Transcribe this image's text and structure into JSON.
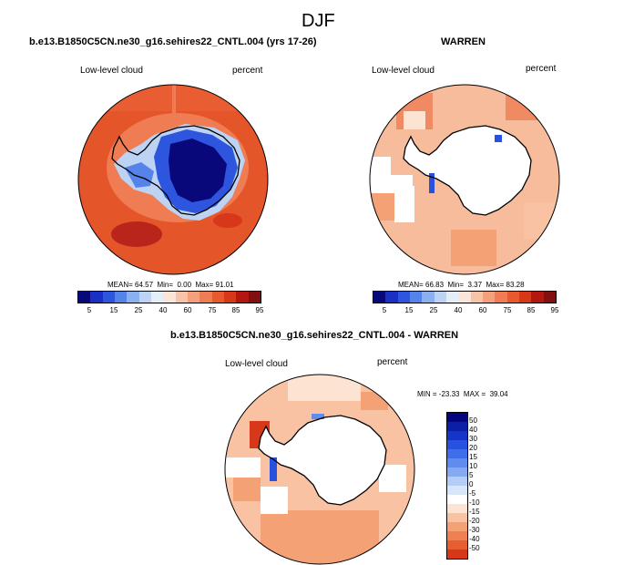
{
  "page": {
    "title": "DJF"
  },
  "panels": [
    {
      "title": "b.e13.B1850C5CN.ne30_g16.sehires22_CNTL.004 (yrs 17-26)",
      "left_label": "Low-level cloud",
      "right_label": "percent",
      "stats": "MEAN= 64.57  Min=  0.00  Max= 91.01"
    },
    {
      "title": "WARREN",
      "left_label": "Low-level cloud",
      "right_label": "percent",
      "stats": "MEAN= 66.83  Min=  3.37  Max= 83.28"
    },
    {
      "title": "b.e13.B1850C5CN.ne30_g16.sehires22_CNTL.004 - WARREN",
      "left_label": "Low-level cloud",
      "right_label": "percent",
      "stats": "MIN = -23.33  MAX =  39.04"
    }
  ],
  "colorbar_horizontal": {
    "colors": [
      "#08087a",
      "#1a2fc4",
      "#2e55de",
      "#5683ea",
      "#8ab0f0",
      "#bcd3f4",
      "#e4eef8",
      "#fbe4d8",
      "#f8c4a8",
      "#f4a07a",
      "#ef7c52",
      "#e85a2e",
      "#d8381a",
      "#b21810",
      "#821010"
    ],
    "tick_labels": [
      "5",
      "15",
      "25",
      "40",
      "60",
      "75",
      "85",
      "95"
    ]
  },
  "colorbar_vertical": {
    "colors": [
      "#03047e",
      "#0a1ea8",
      "#1535c9",
      "#2752e0",
      "#3f6fe8",
      "#5f8cee",
      "#86aaf2",
      "#b3cdf6",
      "#d8e6fa",
      "#ffffff",
      "#fde3d2",
      "#f9c2a2",
      "#f4a176",
      "#ef8052",
      "#e85e32",
      "#d8381a",
      "#b81a0e",
      "#8e0c08",
      "#6b0808"
    ],
    "tick_labels": [
      "50",
      "40",
      "30",
      "20",
      "15",
      "10",
      "5",
      "0",
      "-5",
      "-10",
      "-15",
      "-20",
      "-30",
      "-40",
      "-50"
    ]
  },
  "colors": {
    "continent": "#ffffff",
    "coast": "#000000"
  }
}
